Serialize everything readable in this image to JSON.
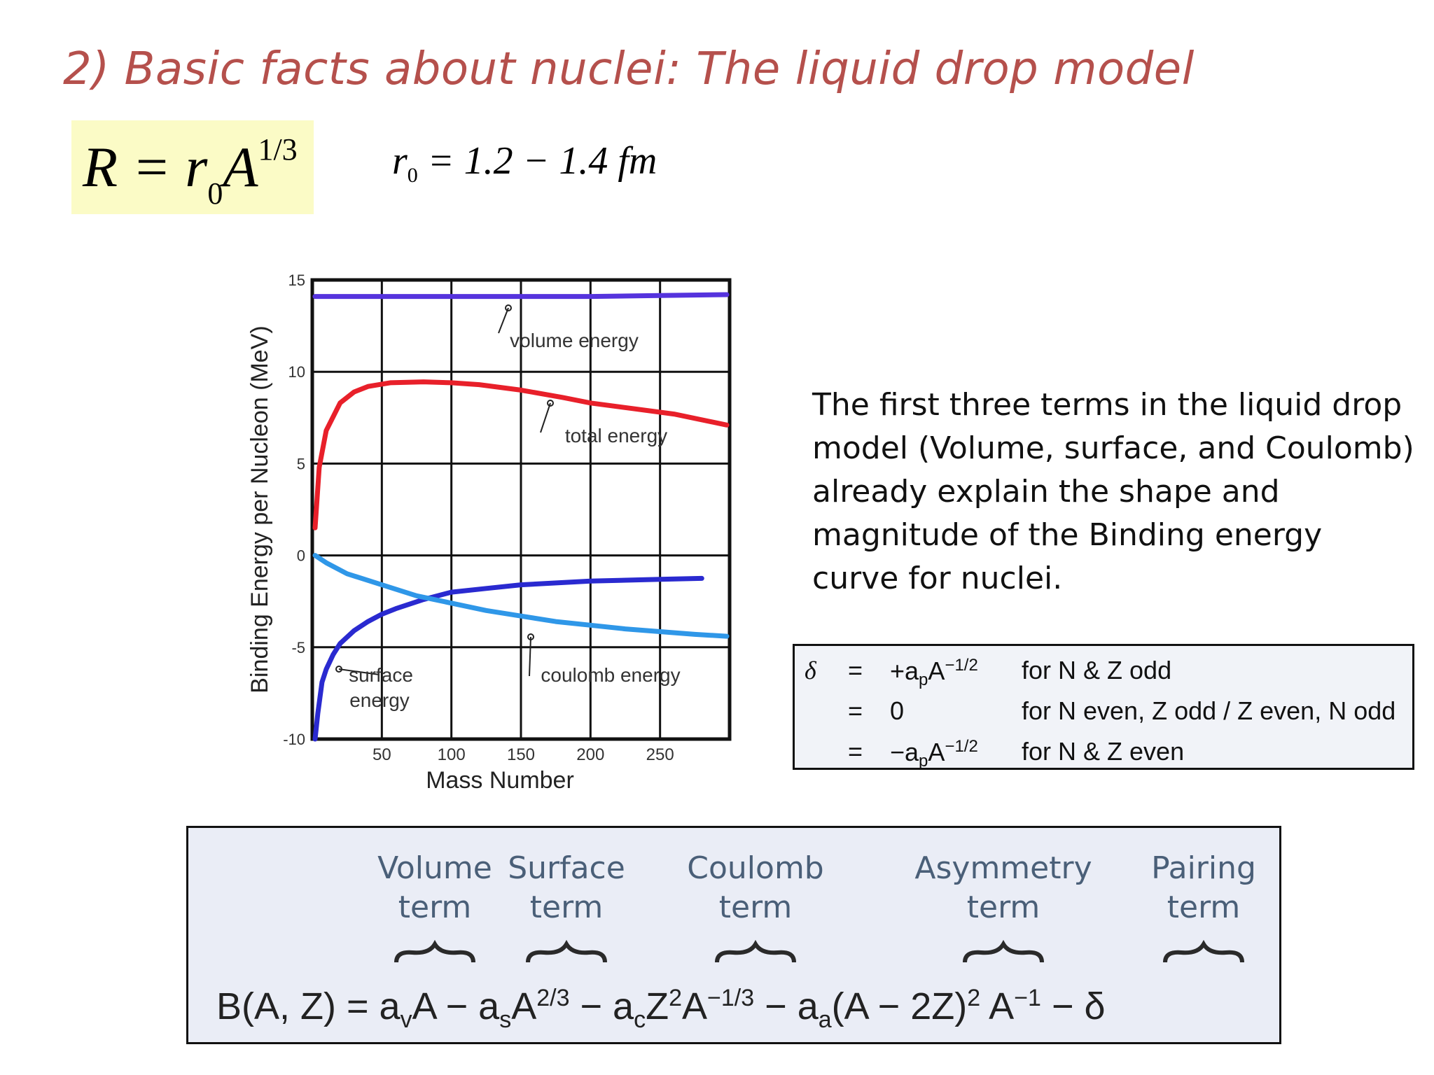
{
  "title": "2) Basic facts about nuclei: The liquid drop model",
  "radius_formula": {
    "lhs": "R = r",
    "sub": "0",
    "var": "A",
    "exp": "1/3"
  },
  "r0_formula": {
    "var": "r",
    "sub": "0",
    "rhs": " = 1.2 − 1.4 fm"
  },
  "description": "The first three terms in the liquid drop model (Volume, surface, and Coulomb) already explain the shape and magnitude of the Binding energy curve for nuclei.",
  "chart_data": {
    "type": "line",
    "xlabel": "Mass Number",
    "ylabel": "Binding Energy per Nucleon (MeV)",
    "xlim": [
      0,
      300
    ],
    "ylim": [
      -10,
      15
    ],
    "xticks": [
      "50",
      "100",
      "150",
      "200",
      "250"
    ],
    "yticks": [
      "15",
      "10",
      "5",
      "0",
      "-5",
      "-10"
    ],
    "grid": true,
    "series": [
      {
        "name": "volume energy",
        "color": "#5533dd",
        "x": [
          2,
          50,
          100,
          150,
          200,
          250,
          298
        ],
        "y": [
          14.1,
          14.1,
          14.1,
          14.1,
          14.1,
          14.15,
          14.2
        ]
      },
      {
        "name": "total energy",
        "color": "#e8202a",
        "x": [
          2,
          5,
          10,
          20,
          30,
          40,
          56,
          80,
          100,
          120,
          150,
          180,
          200,
          230,
          260,
          298
        ],
        "y": [
          1.5,
          4.8,
          6.8,
          8.3,
          8.9,
          9.2,
          9.4,
          9.45,
          9.4,
          9.3,
          9.0,
          8.6,
          8.3,
          8.0,
          7.7,
          7.1
        ]
      },
      {
        "name": "surface energy",
        "color": "#2a2ad0",
        "x": [
          2,
          4,
          7,
          10,
          15,
          20,
          30,
          40,
          50,
          60,
          80,
          100,
          125,
          150,
          200,
          250,
          280
        ],
        "y": [
          -10.0,
          -8.6,
          -6.9,
          -6.2,
          -5.4,
          -4.8,
          -4.1,
          -3.6,
          -3.2,
          -2.9,
          -2.4,
          -2.0,
          -1.8,
          -1.6,
          -1.4,
          -1.3,
          -1.25
        ]
      },
      {
        "name": "coulomb energy",
        "color": "#2f97e8",
        "x": [
          2,
          10,
          25,
          50,
          75,
          100,
          125,
          150,
          175,
          200,
          225,
          250,
          275,
          298
        ],
        "y": [
          0.0,
          -0.4,
          -1.0,
          -1.6,
          -2.2,
          -2.6,
          -3.0,
          -3.3,
          -3.6,
          -3.8,
          -4.0,
          -4.15,
          -4.3,
          -4.4
        ]
      }
    ],
    "annotations": [
      {
        "text": "volume energy",
        "series": "volume energy"
      },
      {
        "text": "total energy",
        "series": "total energy"
      },
      {
        "text": "surface",
        "series": "surface energy"
      },
      {
        "text": "energy",
        "series": "surface energy"
      },
      {
        "text": "coulomb energy",
        "series": "coulomb energy"
      }
    ]
  },
  "pairing": {
    "delta": "δ",
    "eq": "=",
    "rows": [
      {
        "expr_pre": "+a",
        "expr_sub": "p",
        "expr_base": "A",
        "expr_sup": "−1/2",
        "cond": "for N & Z odd"
      },
      {
        "expr_pre": "0",
        "expr_sub": "",
        "expr_base": "",
        "expr_sup": "",
        "cond": "for N even, Z odd / Z even, N odd"
      },
      {
        "expr_pre": "−a",
        "expr_sub": "p",
        "expr_base": "A",
        "expr_sup": "−1/2",
        "cond": "for N & Z even"
      }
    ]
  },
  "semf": {
    "terms": [
      {
        "line1": "Volume",
        "line2": "term"
      },
      {
        "line1": "Surface",
        "line2": "term"
      },
      {
        "line1": "Coulomb",
        "line2": "term"
      },
      {
        "line1": "Asymmetry",
        "line2": "term"
      },
      {
        "line1": "Pairing",
        "line2": "term"
      }
    ],
    "formula": {
      "p1": "B(A, Z) = a",
      "s1": "v",
      "p2": "A − a",
      "s2": "s",
      "p3": "A",
      "e3": "2/3",
      "p4": " − a",
      "s4": "c",
      "p5": "Z",
      "e5": "2",
      "p6": "A",
      "e6": "−1/3",
      "p7": " − a",
      "s7": "a",
      "p8": "(A − 2Z)",
      "e8": "2",
      "p9": " A",
      "e9": "−1",
      "p10": " − δ"
    },
    "brace_color": "#2a2a2a"
  }
}
